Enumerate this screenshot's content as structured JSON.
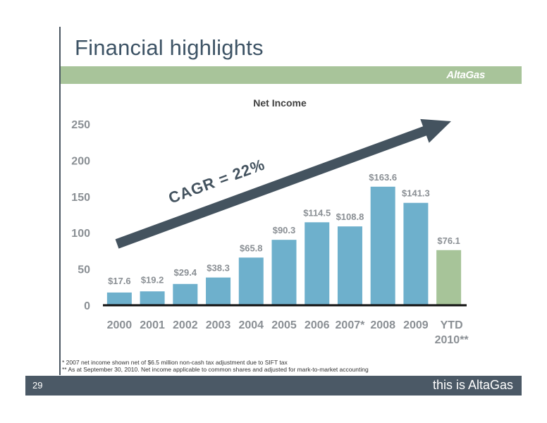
{
  "slide": {
    "title": "Financial highlights",
    "logo": "AltaGas",
    "page_number": "29",
    "tagline": "this is AltaGas"
  },
  "footnotes": [
    "* 2007 net income shown net of $6.5 million non-cash tax adjustment due to SIFT tax",
    "** As at September 30, 2010. Net income applicable to common shares and adjusted for mark-to-market accounting"
  ],
  "chart_data": {
    "type": "bar",
    "title": "Net Income",
    "xlabel": "",
    "ylabel": "",
    "ylim": [
      0,
      250
    ],
    "yticks": [
      "0",
      "50",
      "100",
      "150",
      "200",
      "250"
    ],
    "grid": false,
    "legend": "none",
    "categories": [
      [
        "2000"
      ],
      [
        "2001"
      ],
      [
        "2002"
      ],
      [
        "2003"
      ],
      [
        "2004"
      ],
      [
        "2005"
      ],
      [
        "2006"
      ],
      [
        "2007*"
      ],
      [
        "2008"
      ],
      [
        "2009"
      ],
      [
        "YTD",
        "2010**"
      ]
    ],
    "values": [
      17.6,
      19.2,
      29.4,
      38.3,
      65.8,
      90.3,
      114.5,
      108.8,
      163.6,
      141.3,
      76.1
    ],
    "data_labels": [
      "$17.6",
      "$19.2",
      "$29.4",
      "$38.3",
      "$65.8",
      "$90.3",
      "$114.5",
      "$108.8",
      "$163.6",
      "$141.3",
      "$76.1"
    ],
    "bar_colors": [
      "#6eb0cc",
      "#6eb0cc",
      "#6eb0cc",
      "#6eb0cc",
      "#6eb0cc",
      "#6eb0cc",
      "#6eb0cc",
      "#6eb0cc",
      "#6eb0cc",
      "#6eb0cc",
      "#a7c499"
    ],
    "annotation": {
      "text": "CAGR = 22%",
      "arrow_color": "#44535f"
    }
  }
}
